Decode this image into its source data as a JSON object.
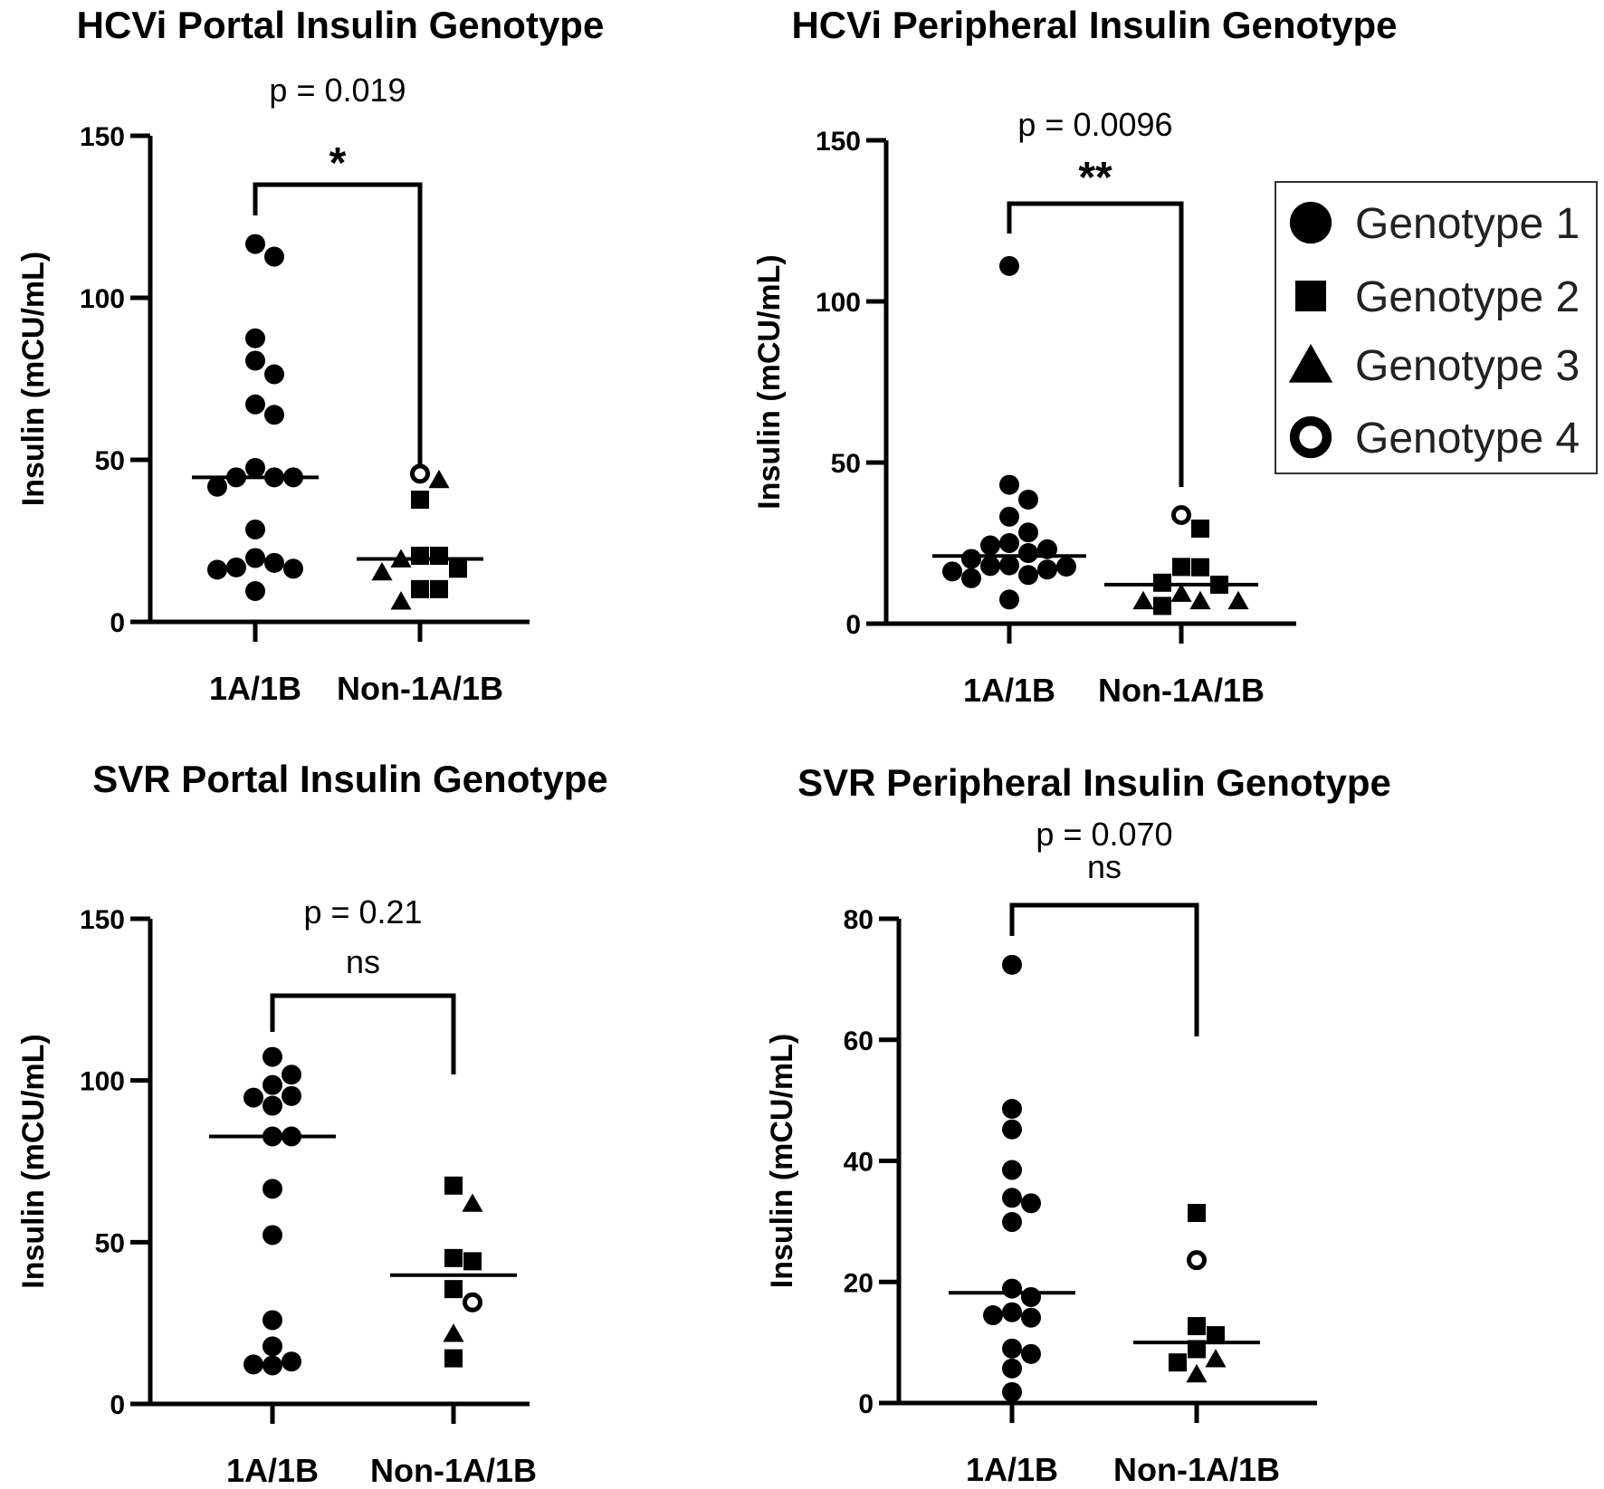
{
  "chart_data": [
    {
      "type": "scatter",
      "title": "HCVi Portal Insulin Genotype",
      "ylabel": "Insulin  (mCU/mL)",
      "ylim": [
        0,
        150
      ],
      "yticks": [
        "0",
        "50",
        "100",
        "150"
      ],
      "categories": [
        "1A/1B",
        "Non-1A/1B"
      ],
      "p_value": "p = 0.019",
      "significance": "*",
      "medians": [
        44.6,
        19.4
      ],
      "groups": [
        {
          "category": "1A/1B",
          "points": [
            [
              1,
              116.6
            ],
            [
              1,
              112.7
            ],
            [
              1,
              87.5
            ],
            [
              1,
              80.6
            ],
            [
              1,
              76.4
            ],
            [
              1,
              67.1
            ],
            [
              1,
              63.9
            ],
            [
              1,
              47.5
            ],
            [
              1,
              44.6
            ],
            [
              1,
              44.6
            ],
            [
              1,
              44.6
            ],
            [
              1,
              41.7
            ],
            [
              1,
              28.5
            ],
            [
              1,
              19.7
            ],
            [
              1,
              18.2
            ],
            [
              1,
              16.8
            ],
            [
              1,
              16.4
            ],
            [
              1,
              16.1
            ],
            [
              1,
              9.5
            ]
          ]
        },
        {
          "category": "Non-1A/1B",
          "points": [
            [
              4,
              45.7
            ],
            [
              3,
              43.9
            ],
            [
              2,
              37.7
            ],
            [
              2,
              20.4
            ],
            [
              2,
              20.4
            ],
            [
              3,
              19.4
            ],
            [
              2,
              16.4
            ],
            [
              3,
              15.4
            ],
            [
              2,
              10.1
            ],
            [
              2,
              10.1
            ],
            [
              3,
              6.4
            ]
          ]
        }
      ]
    },
    {
      "type": "scatter",
      "title": "HCVi Peripheral Insulin Genotype",
      "ylabel": "Insulin  (mCU/mL)",
      "ylim": [
        0,
        150
      ],
      "yticks": [
        "0",
        "50",
        "100",
        "150"
      ],
      "categories": [
        "1A/1B",
        "Non-1A/1B"
      ],
      "p_value": "p = 0.0096",
      "significance": "**",
      "medians": [
        21.0,
        12.1
      ],
      "groups": [
        {
          "category": "1A/1B",
          "points": [
            [
              1,
              111.0
            ],
            [
              1,
              43.1
            ],
            [
              1,
              38.5
            ],
            [
              1,
              33.2
            ],
            [
              1,
              28.3
            ],
            [
              1,
              25.0
            ],
            [
              1,
              24.3
            ],
            [
              1,
              23.1
            ],
            [
              1,
              21.9
            ],
            [
              1,
              20.1
            ],
            [
              1,
              18.1
            ],
            [
              1,
              17.9
            ],
            [
              1,
              17.7
            ],
            [
              1,
              16.8
            ],
            [
              1,
              16.2
            ],
            [
              1,
              15.1
            ],
            [
              1,
              14.1
            ],
            [
              1,
              7.5
            ]
          ]
        },
        {
          "category": "Non-1A/1B",
          "points": [
            [
              4,
              33.7
            ],
            [
              2,
              29.5
            ],
            [
              2,
              17.6
            ],
            [
              2,
              17.5
            ],
            [
              2,
              12.7
            ],
            [
              2,
              12.1
            ],
            [
              3,
              9.4
            ],
            [
              3,
              7.1
            ],
            [
              3,
              7.1
            ],
            [
              3,
              7.1
            ],
            [
              2,
              5.5
            ]
          ]
        }
      ]
    },
    {
      "type": "scatter",
      "title": "SVR Portal Insulin Genotype",
      "ylabel": "Insulin  (mCU/mL)",
      "ylim": [
        0,
        150
      ],
      "yticks": [
        "0",
        "50",
        "100",
        "150"
      ],
      "categories": [
        "1A/1B",
        "Non-1A/1B"
      ],
      "p_value": "p = 0.21",
      "significance": "ns",
      "medians": [
        82.7,
        39.8
      ],
      "groups": [
        {
          "category": "1A/1B",
          "points": [
            [
              1,
              107.3
            ],
            [
              1,
              101.8
            ],
            [
              1,
              98.6
            ],
            [
              1,
              95.2
            ],
            [
              1,
              94.7
            ],
            [
              1,
              92.2
            ],
            [
              1,
              82.7
            ],
            [
              1,
              82.7
            ],
            [
              1,
              66.5
            ],
            [
              1,
              52.2
            ],
            [
              1,
              25.9
            ],
            [
              1,
              17.8
            ],
            [
              1,
              13.1
            ],
            [
              1,
              12.2
            ],
            [
              1,
              11.9
            ]
          ]
        },
        {
          "category": "Non-1A/1B",
          "points": [
            [
              2,
              67.5
            ],
            [
              3,
              62.0
            ],
            [
              2,
              45.1
            ],
            [
              2,
              44.1
            ],
            [
              2,
              35.5
            ],
            [
              4,
              31.4
            ],
            [
              3,
              21.8
            ],
            [
              2,
              14.1
            ]
          ]
        }
      ]
    },
    {
      "type": "scatter",
      "title": "SVR Peripheral Insulin Genotype",
      "ylabel": "Insulin  (mCU/mL)",
      "ylim": [
        0,
        80
      ],
      "yticks": [
        "0",
        "20",
        "40",
        "60",
        "80"
      ],
      "categories": [
        "1A/1B",
        "Non-1A/1B"
      ],
      "p_value": "p = 0.070",
      "significance": "ns",
      "medians": [
        18.2,
        10.0
      ],
      "groups": [
        {
          "category": "1A/1B",
          "points": [
            [
              1,
              72.4
            ],
            [
              1,
              48.6
            ],
            [
              1,
              45.2
            ],
            [
              1,
              38.5
            ],
            [
              1,
              33.9
            ],
            [
              1,
              33.0
            ],
            [
              1,
              29.9
            ],
            [
              1,
              18.9
            ],
            [
              1,
              17.5
            ],
            [
              1,
              15.0
            ],
            [
              1,
              14.5
            ],
            [
              1,
              14.1
            ],
            [
              1,
              9.0
            ],
            [
              1,
              8.1
            ],
            [
              1,
              5.7
            ],
            [
              1,
              1.8
            ]
          ]
        },
        {
          "category": "Non-1A/1B",
          "points": [
            [
              2,
              31.4
            ],
            [
              4,
              23.6
            ],
            [
              2,
              12.7
            ],
            [
              2,
              11.2
            ],
            [
              2,
              8.9
            ],
            [
              3,
              7.3
            ],
            [
              2,
              6.7
            ],
            [
              3,
              4.8
            ]
          ]
        }
      ]
    }
  ],
  "legend": {
    "placement": "right",
    "items": [
      {
        "label": "Genotype 1",
        "marker": "filled-circle"
      },
      {
        "label": "Genotype 2",
        "marker": "filled-square"
      },
      {
        "label": "Genotype 3",
        "marker": "filled-triangle"
      },
      {
        "label": "Genotype 4",
        "marker": "open-circle"
      }
    ]
  },
  "colors": {
    "marker": "#000000",
    "background": "#ffffff"
  }
}
